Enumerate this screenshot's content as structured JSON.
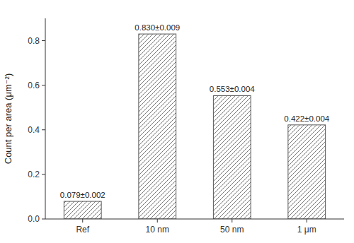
{
  "chart_data": {
    "type": "bar",
    "categories": [
      "Ref",
      "10 nm",
      "50 nm",
      "1 μm"
    ],
    "values": [
      0.079,
      0.83,
      0.553,
      0.422
    ],
    "value_labels": [
      "0.079±0.002",
      "0.830±0.009",
      "0.553±0.004",
      "0.422±0.004"
    ],
    "data_labels": true,
    "ylabel": "Count per area (μm⁻²)",
    "ylim": [
      0,
      0.9
    ],
    "yticks": [
      {
        "value": 0.0,
        "label": "0.0"
      },
      0.2,
      0.4,
      0.6,
      0.8
    ],
    "color": "white",
    "grid": false
  }
}
